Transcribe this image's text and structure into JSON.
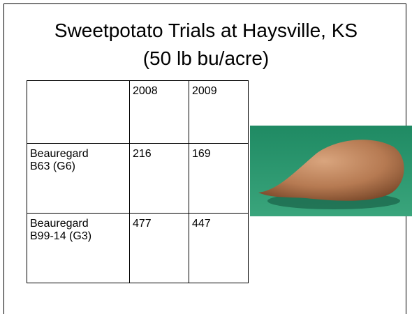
{
  "header": {
    "title_lines": [
      "Sweetpotato Trials at Haysville, KS",
      "(50 lb bu/acre)"
    ]
  },
  "table": {
    "columns": [
      "2008",
      "2009"
    ],
    "rows": [
      {
        "label": "Beauregard B63 (G6)",
        "values": [
          216,
          169
        ]
      },
      {
        "label": "Beauregard B99-14 (G3)",
        "values": [
          477,
          447
        ]
      }
    ]
  }
}
